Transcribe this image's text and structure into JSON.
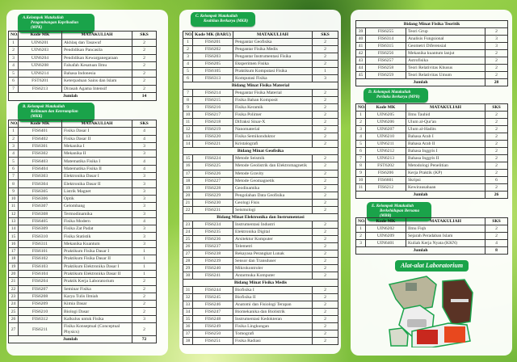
{
  "colors": {
    "accent": "#1aa34a",
    "background": "#8cc63f"
  },
  "headers": {
    "no": "NO.",
    "kode": "Kode MK",
    "kode_baru": "Kode MK (BARU)",
    "matakuliah": "MATAKULIAH",
    "sks": "SKS",
    "jumlah": "Jumlah"
  },
  "groupA": {
    "title1": "A.Kelompok Matakuliah",
    "title2": "Pengembangan Kepribadian (MPK)",
    "total": "14",
    "rows": [
      [
        "1",
        "UIN6201",
        "Akhlaq dan Tasawuf",
        "2"
      ],
      [
        "2",
        "UIN6203",
        "Pendidikan Pancasila",
        "2"
      ],
      [
        "3",
        "UIN6204",
        "Pendidikan Kewarganegaraan",
        "2"
      ],
      [
        "4",
        "UIN6208",
        "Falsafah Kesatuan Ilmu",
        "2"
      ],
      [
        "5",
        "UIN6214",
        "Bahasa Indonesia",
        "2"
      ],
      [
        "6",
        "FST6201",
        "Keterpaduan Sains dan Islam",
        "2"
      ],
      [
        "7",
        "FIS6213",
        "Dirasah Agama Intensif",
        "2"
      ]
    ]
  },
  "groupB": {
    "title1": "B. Kelompok Matakuliah",
    "title2": "Keilmuan dan Keterampilan (MKK)",
    "total": "72",
    "rows": [
      [
        "1",
        "FIS6401",
        "Fisika Dasar I",
        "4"
      ],
      [
        "2",
        "FIS6402",
        "Fisika Dasar II",
        "4"
      ],
      [
        "3",
        "FIS6301",
        "Mekanika I",
        "3"
      ],
      [
        "4",
        "FIS6302",
        "Mekanika II",
        "3"
      ],
      [
        "5",
        "FIS6403",
        "Matematika Fisika I",
        "4"
      ],
      [
        "6",
        "FIS6404",
        "Matematika Fisika II",
        "4"
      ],
      [
        "7",
        "FIS6303",
        "Elektronika Dasar I",
        "3"
      ],
      [
        "8",
        "FIS6304",
        "Elektronika Dasar II",
        "3"
      ],
      [
        "9",
        "FIS6305",
        "Listrik Magnet",
        "3"
      ],
      [
        "10",
        "FIS6306",
        "Optik",
        "3"
      ],
      [
        "11",
        "FIS6307",
        "Gelombang",
        "3"
      ],
      [
        "12",
        "FIS6308",
        "Termodinamika",
        "3"
      ],
      [
        "13",
        "FIS6405",
        "Fisika Modern",
        "4"
      ],
      [
        "14",
        "FIS6309",
        "Fisika Zat Padat",
        "3"
      ],
      [
        "15",
        "FIS6310",
        "Fisika Statistik",
        "3"
      ],
      [
        "16",
        "FIS6311",
        "Mekanika Kuantum",
        "3"
      ],
      [
        "17",
        "FIS6101",
        "Praktikum Fisika Dasar I",
        "1"
      ],
      [
        "18",
        "FIS6102",
        "Praktikum Fisika Dasar II",
        "1"
      ],
      [
        "19",
        "FIS6103",
        "Praktikum Elektronika Dasar I",
        "1"
      ],
      [
        "20",
        "FIS6104",
        "Praktikum Elektronika Dasar II",
        "1"
      ],
      [
        "21",
        "FIS6204",
        "Praktik Kerja Laboratorium",
        "2"
      ],
      [
        "22",
        "FIS6207",
        "Seminar Fisika",
        "2"
      ],
      [
        "23",
        "FIS6208",
        "Karya Tulis Ilmiah",
        "2"
      ],
      [
        "24",
        "FIS6209",
        "Kimia Dasar",
        "2"
      ],
      [
        "25",
        "FIS6210",
        "Biologi Dasar",
        "2"
      ],
      [
        "26",
        "FIS6312",
        "Kalkulus untuk Fisika",
        "3"
      ],
      [
        "27",
        "FIS6211",
        "Fisika Konseptual (Conceptual Physics)",
        "2"
      ]
    ]
  },
  "groupC": {
    "title1": "C. Kelompok Matakuliah",
    "title2": "Keahlian Berkarya (MKB)",
    "rows": [
      [
        "1",
        "FIS6201",
        "Pengantar Geofisika",
        "2"
      ],
      [
        "2",
        "FIS6202",
        "Pengantar Fisika Medis",
        "2"
      ],
      [
        "3",
        "FIS6203",
        "Pengantar Instrumentasi Fisika",
        "2"
      ],
      [
        "4",
        "FIS6205",
        "Eksperimen Fisika",
        "2"
      ],
      [
        "5",
        "FIS6105",
        "Praktikum Komputasi Fisika",
        "1"
      ],
      [
        "6",
        "FIS6313",
        "Komputasi Fisika",
        "3"
      ],
      [
        "Bidang Minat Fisika Material"
      ],
      [
        "7",
        "FIS6214",
        "Pengantar Fisika Material",
        "2"
      ],
      [
        "8",
        "FIS6215",
        "Fisika Bahan Komposit",
        "2"
      ],
      [
        "9",
        "FIS6216",
        "Fisika Keramik",
        "2"
      ],
      [
        "10",
        "FIS6217",
        "Fisika Polimer",
        "2"
      ],
      [
        "11",
        "FIS6218",
        "Difraksi Sinar-X",
        "2"
      ],
      [
        "12",
        "FIS6219",
        "Nanomaterial",
        "2"
      ],
      [
        "13",
        "FIS6220",
        "Fisika Semikonduktor",
        "2"
      ],
      [
        "14",
        "FIS6221",
        "Kristalografi",
        "2"
      ],
      [
        "Bidang Minat Geofisika"
      ],
      [
        "15",
        "FIS6224",
        "Metode Seismik",
        "2"
      ],
      [
        "16",
        "FIS6225",
        "Metode Geolistrik dan Elektromagnetik",
        "2"
      ],
      [
        "17",
        "FIS6226",
        "Metode Gravity",
        "2"
      ],
      [
        "18",
        "FIS6227",
        "Metode Geomagnetik",
        "2"
      ],
      [
        "19",
        "FIS6228",
        "Geodinamika",
        "2"
      ],
      [
        "20",
        "FIS6229",
        "Pengolahan Data Geofisika",
        "2"
      ],
      [
        "21",
        "FIS6230",
        "Geologi Fisis",
        "2"
      ],
      [
        "22",
        "FIS6231",
        "Seismologi",
        "2"
      ],
      [
        "Bidang Minat Elektronika dan Instrumentasi"
      ],
      [
        "23",
        "FIS6234",
        "Instrumentasi Industri",
        "2"
      ],
      [
        "24",
        "FIS6235",
        "Elektronika Digital",
        "2"
      ],
      [
        "25",
        "FIS6236",
        "Arsitektur Komputer",
        "2"
      ],
      [
        "26",
        "FIS6237",
        "Telemetri",
        "2"
      ],
      [
        "27",
        "FIS6238",
        "Rekayasa Perangkat Lunak",
        "2"
      ],
      [
        "28",
        "FIS6239",
        "Sensor dan Transduser",
        "2"
      ],
      [
        "29",
        "FIS6240",
        "Mikrokontroler",
        "2"
      ],
      [
        "30",
        "FIS6241",
        "Antarmuka Komputer",
        "2"
      ],
      [
        "Bidang Minat Fisika Medis"
      ],
      [
        "31",
        "FIS6244",
        "Biofisika I",
        "2"
      ],
      [
        "32",
        "FIS6245",
        "Biofisika II",
        "2"
      ],
      [
        "33",
        "FIS6246",
        "Anatomi dan Fisiologi Terapan",
        "2"
      ],
      [
        "34",
        "FIS6247",
        "Biomekanika dan Biolistrik",
        "2"
      ],
      [
        "35",
        "FIS6248",
        "Instrumentasi Kedokteran",
        "2"
      ],
      [
        "36",
        "FIS6249",
        "Fisika Lingkungan",
        "2"
      ],
      [
        "37",
        "FIS6250",
        "Tomografi",
        "2"
      ],
      [
        "38",
        "FIS6251",
        "Fisika Radiasi",
        "2"
      ]
    ]
  },
  "groupC2": {
    "section": "Bidang Minat Fisika Teoritik",
    "total": "28",
    "rows": [
      [
        "39",
        "FIS6255",
        "Teori Grup",
        "2"
      ],
      [
        "40",
        "FIS6314",
        "Analisis Fungsional",
        "3"
      ],
      [
        "41",
        "FIS6315",
        "Geometri Diferensial",
        "3"
      ],
      [
        "42",
        "FIS6256",
        "Mekanika kuantum lanjut",
        "2"
      ],
      [
        "43",
        "FIS6257",
        "Astrofisika",
        "2"
      ],
      [
        "44",
        "FIS6258",
        "Teori Relativitas Khusus",
        "2"
      ],
      [
        "45",
        "FIS6259",
        "Teori Relativitas Umum",
        "2"
      ]
    ]
  },
  "groupD": {
    "title1": "D. Kelompok Matakuliah",
    "title2": "Perilaku Berkarya (MPB)",
    "total": "26",
    "rows": [
      [
        "1",
        "UIN6205",
        "Ilmu Tauhid",
        "2"
      ],
      [
        "2",
        "UIN6206",
        "Ulum al-Qur'an",
        "2"
      ],
      [
        "3",
        "UIN6207",
        "Ulum al-Hadits",
        "2"
      ],
      [
        "4",
        "UIN6210",
        "Bahasa Arab I",
        "2"
      ],
      [
        "5",
        "UIN6211",
        "Bahasa Arab II",
        "2"
      ],
      [
        "6",
        "UIN6212",
        "Bahasa Inggris I",
        "2"
      ],
      [
        "7",
        "UIN6213",
        "Bahasa Inggris II",
        "2"
      ],
      [
        "8",
        "FST6202",
        "Metodologi Penelitian",
        "2"
      ],
      [
        "9",
        "FIS6206",
        "Kerja Praktik (KP)",
        "2"
      ],
      [
        "10",
        "FIS6601",
        "Skripsi",
        "6"
      ],
      [
        "11",
        "FIS6212",
        "Kewirausahaan",
        "2"
      ]
    ]
  },
  "groupE": {
    "title1": "E. Kelompok Matakuliah",
    "title2": "Berkehidupan Bersama (MBB)",
    "total": "8",
    "rows": [
      [
        "1",
        "UIN6202",
        "Ilmu Fiqh",
        "2"
      ],
      [
        "2",
        "UIN6209",
        "Sejarah Peradaban Islam",
        "2"
      ],
      [
        "3",
        "UIN6401",
        "Kuliah Kerja Nyata (KKN)",
        "4"
      ]
    ]
  },
  "lab": {
    "title": "Alat-alat Laboratorium"
  }
}
